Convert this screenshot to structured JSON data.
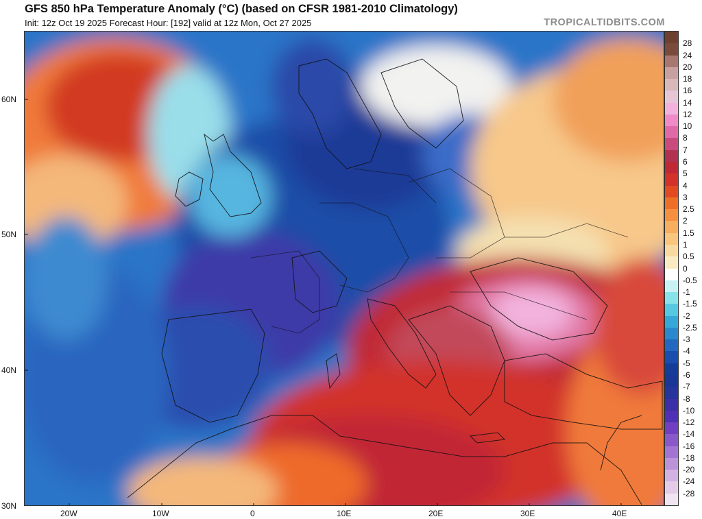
{
  "header": {
    "title": "GFS 850 hPa Temperature Anomaly (°C) (based on CFSR 1981-2010 Climatology)",
    "subtitle": "Init: 12z Oct 19 2025   Forecast Hour: [192]   valid at 12z Mon, Oct 27 2025",
    "brand": "TROPICALTIDBITS.COM"
  },
  "map": {
    "latitude_labels": [
      "60N",
      "50N",
      "40N",
      "30N"
    ],
    "longitude_labels": [
      "20W",
      "10W",
      "0",
      "10E",
      "20E",
      "30E",
      "40E"
    ]
  },
  "colorbar": {
    "labels": [
      "28",
      "24",
      "20",
      "18",
      "16",
      "14",
      "12",
      "10",
      "8",
      "7",
      "6",
      "5",
      "4",
      "3",
      "2.5",
      "2",
      "1.5",
      "1",
      "0.5",
      "0",
      "-0.5",
      "-1",
      "-1.5",
      "-2",
      "-2.5",
      "-3",
      "-4",
      "-5",
      "-6",
      "-7",
      "-8",
      "-10",
      "-12",
      "-14",
      "-16",
      "-18",
      "-20",
      "-24",
      "-28"
    ],
    "colors": [
      "#7a4a3a",
      "#a87870",
      "#c8a0a0",
      "#d8b8b8",
      "#e6c6d6",
      "#f2b2dd",
      "#f08ac8",
      "#e06aa8",
      "#c94a7c",
      "#b23050",
      "#c12836",
      "#d2322a",
      "#e24a22",
      "#ee7028",
      "#f59040",
      "#f7ae5e",
      "#f8c67c",
      "#f8daa0",
      "#f9ecc2",
      "#ffffff",
      "#c8f2f4",
      "#88e2ea",
      "#56c8e2",
      "#36a8d8",
      "#2a88cc",
      "#2268c0",
      "#1a4eae",
      "#163c9a",
      "#1a3696",
      "#26349c",
      "#3c30a8",
      "#5030b4",
      "#7040c0",
      "#8a58c8",
      "#a474d2",
      "#bc92d8",
      "#d2b2e2",
      "#e4cce8",
      "#f0e4f0"
    ]
  }
}
